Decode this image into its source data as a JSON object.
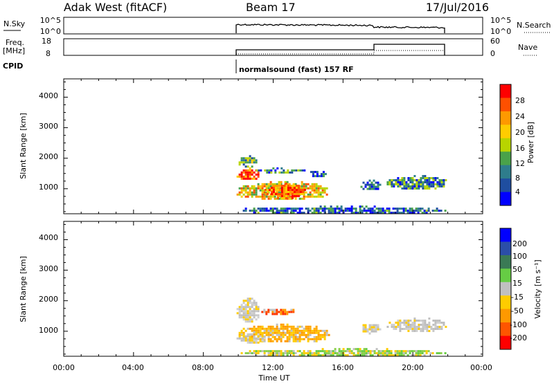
{
  "header": {
    "station": "Adak West (fitACF)",
    "beam": "Beam 17",
    "date": "17/Jul/2016"
  },
  "top_panels": {
    "nsky_label": "N.Sky",
    "nsky_ticks": [
      "10^5",
      "10^0"
    ],
    "nsearch_label": "N.Search",
    "nsearch_ticks": [
      "10^5",
      "10^0"
    ],
    "freq_label_line1": "Freq.",
    "freq_label_line2": "[MHz]",
    "freq_ticks": [
      "18",
      "8"
    ],
    "nave_label": "Nave",
    "nave_ticks": [
      "60",
      "0"
    ],
    "cpid_label": "CPID",
    "cpid_text": "normalsound (fast) 157 RF"
  },
  "time_axis": {
    "ticks": [
      "00:00",
      "04:00",
      "08:00",
      "12:00",
      "16:00",
      "20:00",
      "00:00"
    ],
    "label": "Time UT"
  },
  "chart_data": [
    {
      "type": "heatmap",
      "name": "power",
      "ylabel": "Slant Range [km]",
      "xlabel": "Time UT",
      "ylim_km": [
        180,
        4600
      ],
      "xlim_hours": [
        0,
        24
      ],
      "y_ticks": [
        "4000",
        "3000",
        "2000",
        "1000"
      ],
      "colorbar_label": "Power [dB]",
      "colorbar_ticks": [
        "28",
        "24",
        "20",
        "16",
        "12",
        "8",
        "4"
      ],
      "colorbar_colors": [
        "#ff0000",
        "#ff5000",
        "#ff9900",
        "#ffcc00",
        "#b8d400",
        "#4aa24a",
        "#2e7d8c",
        "#1f4ea0",
        "#0000ff"
      ],
      "regions": [
        {
          "t0": 9.9,
          "t1": 11.2,
          "r0": 1300,
          "r1": 1700,
          "level": 0.85
        },
        {
          "t0": 9.9,
          "t1": 11.0,
          "r0": 1700,
          "r1": 2100,
          "level": 0.35
        },
        {
          "t0": 11.0,
          "t1": 13.8,
          "r0": 1550,
          "r1": 1700,
          "level": 0.3
        },
        {
          "t0": 9.9,
          "t1": 15.2,
          "r0": 650,
          "r1": 1250,
          "level": 0.6
        },
        {
          "t0": 11.5,
          "t1": 13.8,
          "r0": 700,
          "r1": 1200,
          "level": 0.85
        },
        {
          "t0": 14.0,
          "t1": 15.0,
          "r0": 1400,
          "r1": 1650,
          "level": 0.25
        },
        {
          "t0": 17.0,
          "t1": 18.1,
          "r0": 950,
          "r1": 1300,
          "level": 0.2
        },
        {
          "t0": 18.5,
          "t1": 21.9,
          "r0": 1000,
          "r1": 1450,
          "level": 0.3
        },
        {
          "t0": 9.9,
          "t1": 21.9,
          "r0": 200,
          "r1": 450,
          "level": 0.2
        }
      ]
    },
    {
      "type": "heatmap",
      "name": "velocity",
      "ylabel": "Slant Range [km]",
      "xlabel": "Time UT",
      "ylim_km": [
        180,
        4600
      ],
      "xlim_hours": [
        0,
        24
      ],
      "y_ticks": [
        "4000",
        "3000",
        "2000",
        "1000"
      ],
      "colorbar_label": "Velocity [m s⁻¹]",
      "colorbar_ticks": [
        "200",
        "100",
        "50",
        "15",
        "-15",
        "-50",
        "-100",
        "-200"
      ],
      "colorbar_colors": [
        "#0000ff",
        "#2b4ea8",
        "#3a7a55",
        "#66cc44",
        "#c0c0c0",
        "#ffcc00",
        "#ff9900",
        "#ff5500",
        "#ff0000"
      ],
      "regions": [
        {
          "t0": 9.9,
          "t1": 11.2,
          "r0": 1300,
          "r1": 2100,
          "level": "gray"
        },
        {
          "t0": 11.2,
          "t1": 13.2,
          "r0": 1550,
          "r1": 1800,
          "level": "red"
        },
        {
          "t0": 9.9,
          "t1": 15.2,
          "r0": 650,
          "r1": 1250,
          "level": "orange"
        },
        {
          "t0": 9.9,
          "t1": 11.6,
          "r0": 650,
          "r1": 1000,
          "level": "gray"
        },
        {
          "t0": 17.0,
          "t1": 18.1,
          "r0": 950,
          "r1": 1300,
          "level": "gray"
        },
        {
          "t0": 18.5,
          "t1": 21.9,
          "r0": 1000,
          "r1": 1450,
          "level": "gray"
        },
        {
          "t0": 9.9,
          "t1": 21.9,
          "r0": 200,
          "r1": 450,
          "level": "green"
        }
      ]
    }
  ]
}
